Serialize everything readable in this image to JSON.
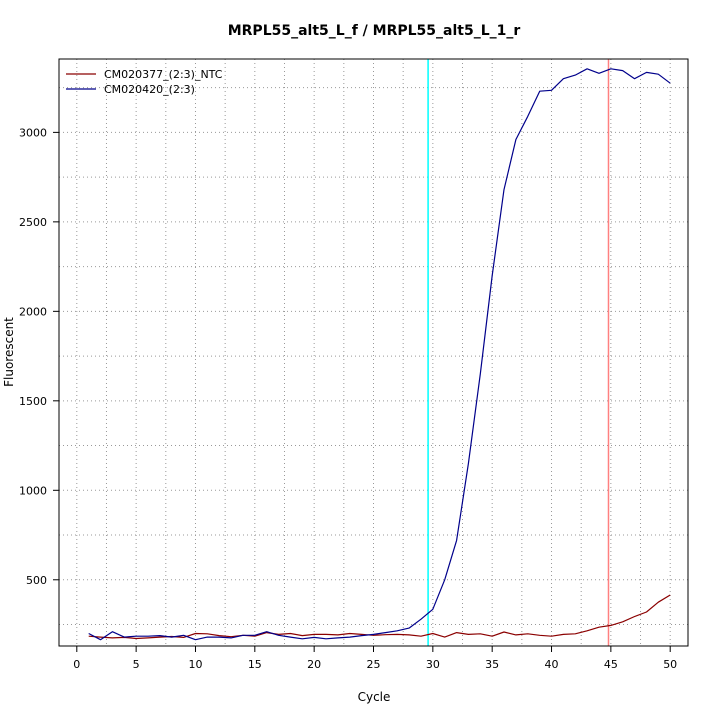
{
  "chart_data": {
    "type": "line",
    "title": "MRPL55_alt5_L_f / MRPL55_alt5_L_1_r",
    "xlabel": "Cycle",
    "ylabel": "Fluorescent",
    "xlim": [
      -1.5,
      51.5
    ],
    "ylim": [
      130,
      3410
    ],
    "x_ticks": [
      0,
      5,
      10,
      15,
      20,
      25,
      30,
      35,
      40,
      45,
      50
    ],
    "y_ticks": [
      500,
      1000,
      1500,
      2000,
      2500,
      3000
    ],
    "grid": true,
    "legend_position": "top-left",
    "x": [
      1,
      2,
      3,
      4,
      5,
      6,
      7,
      8,
      9,
      10,
      11,
      12,
      13,
      14,
      15,
      16,
      17,
      18,
      19,
      20,
      21,
      22,
      23,
      24,
      25,
      26,
      27,
      28,
      29,
      30,
      31,
      32,
      33,
      34,
      35,
      36,
      37,
      38,
      39,
      40,
      41,
      42,
      43,
      44,
      45,
      46,
      47,
      48,
      49,
      50
    ],
    "series": [
      {
        "name": "CM020377_(2:3)_NTC",
        "color": "#8b0000",
        "values": [
          185,
          180,
          175,
          178,
          172,
          175,
          180,
          183,
          178,
          200,
          198,
          188,
          182,
          190,
          185,
          205,
          195,
          200,
          188,
          195,
          195,
          192,
          200,
          195,
          190,
          193,
          195,
          192,
          185,
          200,
          180,
          205,
          195,
          198,
          185,
          208,
          192,
          198,
          190,
          185,
          195,
          198,
          215,
          235,
          245,
          265,
          295,
          320,
          375,
          415
        ]
      },
      {
        "name": "CM020420_(2:3)",
        "color": "#00008b",
        "values": [
          200,
          165,
          210,
          180,
          185,
          185,
          188,
          180,
          190,
          165,
          180,
          180,
          175,
          190,
          190,
          210,
          190,
          180,
          170,
          178,
          170,
          175,
          180,
          188,
          195,
          205,
          215,
          230,
          280,
          335,
          500,
          720,
          1150,
          1650,
          2200,
          2680,
          2960,
          3090,
          3230,
          3235,
          3300,
          3320,
          3355,
          3330,
          3355,
          3345,
          3300,
          3335,
          3325,
          3275
        ]
      }
    ],
    "vlines": [
      {
        "x": 29.6,
        "color": "#00ffff"
      },
      {
        "x": 44.8,
        "color": "#ff8080"
      }
    ]
  }
}
